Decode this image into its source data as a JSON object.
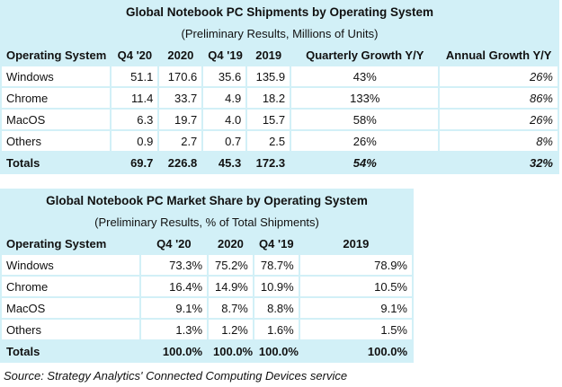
{
  "table1": {
    "title": "Global Notebook PC Shipments by Operating System",
    "subtitle": "(Preliminary Results, Millions of Units)",
    "header": [
      "Operating System",
      "Q4 '20",
      "2020",
      "Q4 '19",
      "2019",
      "Quarterly Growth Y/Y",
      "Annual Growth Y/Y"
    ],
    "rows": [
      [
        "Windows",
        "51.1",
        "170.6",
        "35.6",
        "135.9",
        "43%",
        "26%"
      ],
      [
        "Chrome",
        "11.4",
        "33.7",
        "4.9",
        "18.2",
        "133%",
        "86%"
      ],
      [
        "MacOS",
        "6.3",
        "19.7",
        "4.0",
        "15.7",
        "58%",
        "26%"
      ],
      [
        "Others",
        "0.9",
        "2.7",
        "0.7",
        "2.5",
        "26%",
        "8%"
      ],
      [
        "Totals",
        "69.7",
        "226.8",
        "45.3",
        "172.3",
        "54%",
        "32%"
      ]
    ]
  },
  "table2": {
    "title": "Global Notebook PC Market Share by Operating System",
    "subtitle": "(Preliminary Results, % of Total Shipments)",
    "header": [
      "Operating System",
      "Q4 '20",
      "2020",
      "Q4 '19",
      "2019"
    ],
    "rows": [
      [
        "Windows",
        "73.3%",
        "75.2%",
        "78.7%",
        "78.9%"
      ],
      [
        "Chrome",
        "16.4%",
        "14.9%",
        "10.9%",
        "10.5%"
      ],
      [
        "MacOS",
        "9.1%",
        "8.7%",
        "8.8%",
        "9.1%"
      ],
      [
        "Others",
        "1.3%",
        "1.2%",
        "1.6%",
        "1.5%"
      ],
      [
        "Totals",
        "100.0%",
        "100.0%",
        "100.0%",
        "100.0%"
      ]
    ]
  },
  "source": "Source: Strategy Analytics' Connected Computing Devices service"
}
